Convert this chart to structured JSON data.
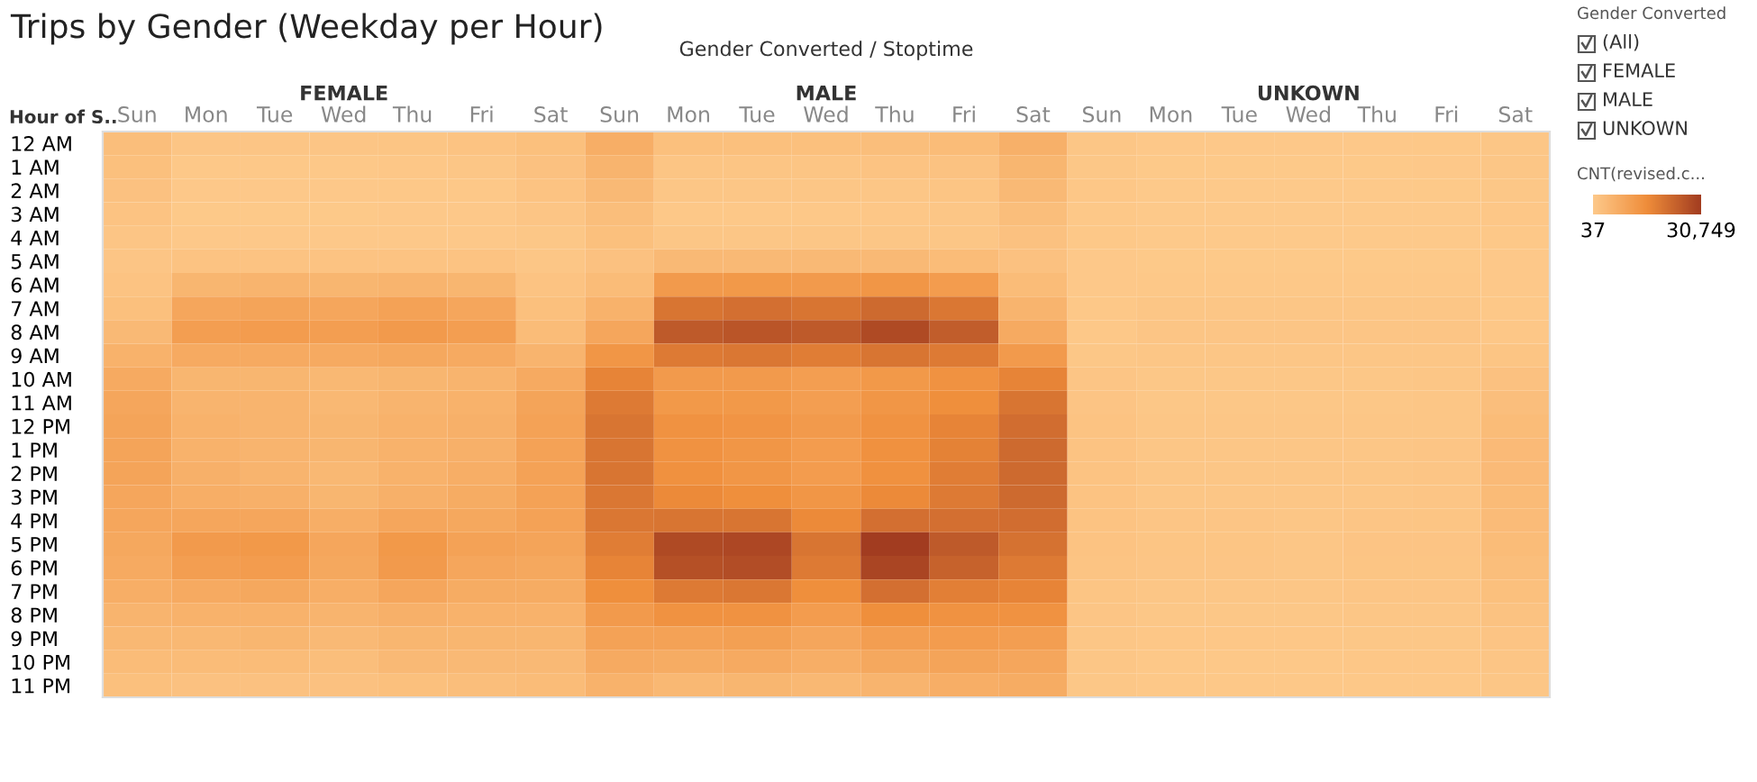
{
  "chart_data": {
    "type": "heatmap",
    "title": "Trips by Gender (Weekday per Hour)",
    "xlabel": "Gender Converted / Stoptime",
    "ylabel": "Hour of S..",
    "clabel": "CNT(revised.c...",
    "categories": [
      "Sun",
      "Mon",
      "Tue",
      "Wed",
      "Thu",
      "Fri",
      "Sat",
      "Sun",
      "Mon",
      "Tue",
      "Wed",
      "Thu",
      "Fri",
      "Sat",
      "Sun",
      "Mon",
      "Tue",
      "Wed",
      "Thu",
      "Fri",
      "Sat"
    ],
    "y_categories": [
      "12 AM",
      "1 AM",
      "2 AM",
      "3 AM",
      "4 AM",
      "5 AM",
      "6 AM",
      "7 AM",
      "8 AM",
      "9 AM",
      "10 AM",
      "11 AM",
      "12 PM",
      "1 PM",
      "2 PM",
      "3 PM",
      "4 PM",
      "5 PM",
      "6 PM",
      "7 PM",
      "8 PM",
      "9 PM",
      "10 PM",
      "11 PM"
    ],
    "cells": [
      [
        3000,
        1000,
        1000,
        1000,
        1200,
        1500,
        2500,
        7000,
        2500,
        2500,
        2500,
        3000,
        3500,
        6500,
        800,
        300,
        300,
        300,
        300,
        400,
        900
      ],
      [
        2500,
        500,
        500,
        500,
        600,
        800,
        2000,
        5500,
        1200,
        1200,
        1200,
        1500,
        1800,
        5000,
        700,
        200,
        200,
        200,
        200,
        300,
        800
      ],
      [
        2000,
        300,
        300,
        300,
        400,
        500,
        1500,
        4000,
        800,
        800,
        800,
        900,
        1200,
        4000,
        600,
        100,
        100,
        100,
        100,
        200,
        700
      ],
      [
        1500,
        200,
        200,
        200,
        300,
        300,
        1000,
        3000,
        500,
        500,
        500,
        600,
        800,
        3000,
        500,
        80,
        37,
        60,
        70,
        100,
        600
      ],
      [
        1000,
        300,
        300,
        300,
        300,
        300,
        700,
        2500,
        800,
        800,
        800,
        800,
        800,
        2000,
        400,
        60,
        60,
        60,
        60,
        80,
        400
      ],
      [
        1000,
        1500,
        1500,
        1500,
        1500,
        1500,
        800,
        2000,
        4000,
        4000,
        4000,
        4000,
        3500,
        2000,
        300,
        200,
        200,
        200,
        200,
        200,
        300
      ],
      [
        1500,
        5000,
        5500,
        5000,
        5500,
        5000,
        1500,
        3500,
        12000,
        12500,
        12000,
        13000,
        11500,
        3500,
        300,
        500,
        500,
        500,
        500,
        500,
        300
      ],
      [
        2500,
        9000,
        9500,
        9000,
        10000,
        9000,
        2500,
        6000,
        20000,
        21000,
        20000,
        22000,
        19500,
        5500,
        400,
        800,
        800,
        800,
        800,
        800,
        400
      ],
      [
        4000,
        11000,
        11500,
        11000,
        12000,
        11000,
        3500,
        9000,
        25000,
        26000,
        25000,
        28000,
        24500,
        8000,
        500,
        1000,
        1000,
        1000,
        1100,
        1000,
        600
      ],
      [
        6000,
        8000,
        8000,
        8000,
        8500,
        8000,
        5500,
        13000,
        19000,
        19500,
        18500,
        20000,
        19000,
        12000,
        700,
        900,
        900,
        900,
        900,
        900,
        1200
      ],
      [
        8000,
        5000,
        5000,
        4500,
        5000,
        5500,
        8000,
        17000,
        12000,
        12000,
        11000,
        12500,
        14000,
        17000,
        1100,
        700,
        700,
        700,
        700,
        800,
        2000
      ],
      [
        9000,
        5500,
        5500,
        4500,
        5500,
        6000,
        9500,
        19000,
        12500,
        12500,
        11000,
        13000,
        15000,
        20000,
        1300,
        700,
        700,
        700,
        700,
        800,
        2800
      ],
      [
        9500,
        6000,
        5500,
        5000,
        6000,
        6500,
        10000,
        20000,
        14000,
        13500,
        12000,
        14000,
        17000,
        21500,
        1500,
        800,
        800,
        800,
        800,
        900,
        3500
      ],
      [
        9500,
        6000,
        5500,
        5000,
        6000,
        6500,
        10000,
        20000,
        14000,
        13000,
        11500,
        14500,
        17500,
        22000,
        1600,
        800,
        800,
        800,
        800,
        1000,
        3800
      ],
      [
        9500,
        6500,
        5500,
        4500,
        6000,
        7000,
        10000,
        20000,
        14500,
        13000,
        11500,
        14500,
        18500,
        22000,
        1600,
        800,
        800,
        800,
        900,
        1000,
        3800
      ],
      [
        9000,
        7000,
        6500,
        5000,
        6500,
        7500,
        10000,
        19500,
        16000,
        15000,
        13000,
        16000,
        19000,
        22000,
        1600,
        900,
        900,
        800,
        900,
        1100,
        3700
      ],
      [
        9000,
        9000,
        9000,
        7000,
        9000,
        8500,
        10000,
        19500,
        20000,
        20000,
        16000,
        21000,
        21000,
        21500,
        1500,
        1000,
        1000,
        900,
        1100,
        1200,
        3600
      ],
      [
        8500,
        12000,
        12500,
        9000,
        12500,
        10000,
        9500,
        18500,
        28000,
        28500,
        20000,
        30749,
        25000,
        20500,
        1500,
        1200,
        1200,
        900,
        1300,
        1300,
        3400
      ],
      [
        8000,
        11000,
        11500,
        8500,
        12000,
        9000,
        8500,
        17000,
        27000,
        27500,
        19000,
        29000,
        23500,
        19000,
        1400,
        1100,
        1100,
        900,
        1200,
        1200,
        3000
      ],
      [
        7000,
        8000,
        8500,
        7000,
        9000,
        7500,
        7500,
        15000,
        19000,
        19500,
        15000,
        21000,
        18000,
        17000,
        1200,
        900,
        900,
        800,
        1000,
        1000,
        2500
      ],
      [
        5500,
        6000,
        6000,
        5500,
        6500,
        6000,
        6000,
        12000,
        14000,
        14000,
        11500,
        15000,
        14000,
        14000,
        1000,
        700,
        700,
        700,
        800,
        800,
        1800
      ],
      [
        4500,
        4500,
        5000,
        4000,
        5000,
        5000,
        5000,
        10000,
        10000,
        10500,
        9000,
        11000,
        11500,
        11000,
        900,
        600,
        600,
        600,
        700,
        700,
        1300
      ],
      [
        3500,
        3500,
        3500,
        3000,
        4000,
        4000,
        4000,
        8000,
        7500,
        8000,
        7000,
        8500,
        9500,
        9000,
        800,
        500,
        500,
        500,
        600,
        600,
        1100
      ],
      [
        2500,
        2000,
        2000,
        2000,
        2500,
        3000,
        3500,
        6000,
        4500,
        5000,
        4500,
        5500,
        7000,
        7500,
        700,
        400,
        400,
        400,
        500,
        500,
        900
      ]
    ],
    "clim": [
      37,
      30749
    ],
    "cticks": [
      37,
      {
        "value": 30749,
        "label": "30,749"
      }
    ],
    "annotations": [
      "FEMALE",
      "MALE",
      "UNKOWN",
      "Gender Converted",
      "(All)",
      "FEMALE",
      "MALE",
      "UNKOWN"
    ]
  }
}
